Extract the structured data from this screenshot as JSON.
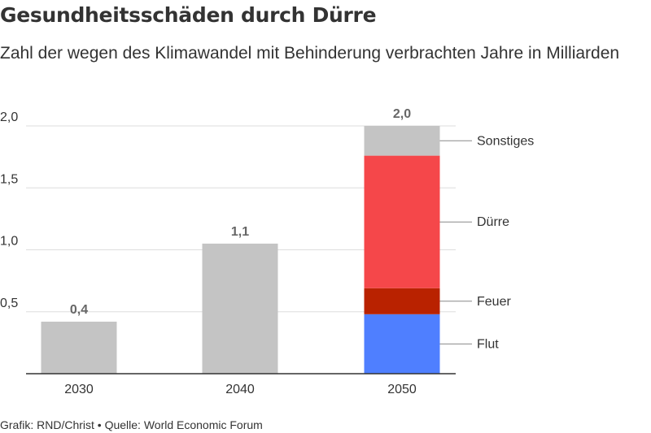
{
  "title": "Gesundheitsschäden durch Dürre",
  "subtitle": "Zahl der wegen des Klimawandel mit Behinderung verbrachten Jahre in Milliarden",
  "footer": "Grafik: RND/Christ • Quelle: World Economic Forum",
  "chart_data": {
    "type": "bar",
    "stacked": true,
    "categories": [
      "2030",
      "2040",
      "2050"
    ],
    "ylim": [
      0,
      2.0
    ],
    "yticks": [
      0.5,
      1.0,
      1.5,
      2.0
    ],
    "ytick_labels": [
      "0,5",
      "1,0",
      "1,5",
      "2,0"
    ],
    "grid": true,
    "totals": [
      0.42,
      1.05,
      2.0
    ],
    "total_labels": [
      "0,4",
      "1,1",
      "2,0"
    ],
    "default_color": "#c4c4c4",
    "stack_2050": [
      {
        "name": "Flut",
        "value": 0.48,
        "color": "#4f7fff"
      },
      {
        "name": "Feuer",
        "value": 0.21,
        "color": "#b92200"
      },
      {
        "name": "Dürre",
        "value": 1.07,
        "color": "#f5474a"
      },
      {
        "name": "Sonstiges",
        "value": 0.24,
        "color": "#c4c4c4"
      }
    ]
  }
}
